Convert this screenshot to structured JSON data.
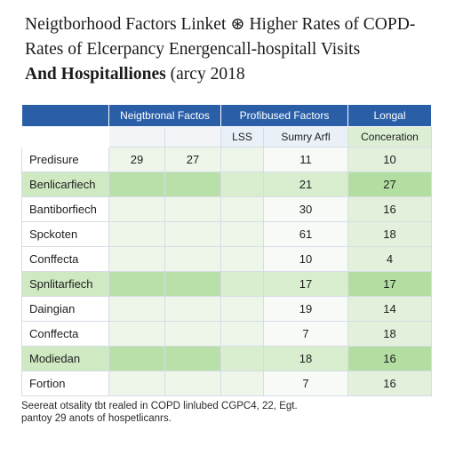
{
  "title": {
    "line1": "Neigtborhood Factors Linket ⊛ Higher Rates of COPD-",
    "line2": "Rates of Elcerpancy Energencall-hospitall Visits",
    "line3": "And Hospitalliones",
    "line3_suffix": "(arcy 2018"
  },
  "chart_data": {
    "type": "table",
    "header_groups": [
      "Neigtbronal Factos",
      "Profibused Factors",
      "Longal"
    ],
    "subheaders": [
      "",
      "",
      "",
      "LSS",
      "Sumry Arfl",
      "Conceration"
    ],
    "rows": [
      {
        "label": "Predisure",
        "values": [
          "29",
          "27",
          "",
          "",
          "11",
          "10"
        ]
      },
      {
        "label": "Benlicarfiech",
        "values": [
          "",
          "",
          "",
          "",
          "21",
          "27"
        ]
      },
      {
        "label": "Bantiborfiech",
        "values": [
          "",
          "",
          "",
          "",
          "30",
          "16"
        ]
      },
      {
        "label": "Spckoten",
        "values": [
          "",
          "",
          "",
          "",
          "61",
          "18"
        ]
      },
      {
        "label": "Conffecta",
        "values": [
          "",
          "",
          "",
          "",
          "10",
          "4"
        ]
      },
      {
        "label": "Spnlitarfiech",
        "values": [
          "",
          "",
          "",
          "",
          "17",
          "17"
        ]
      },
      {
        "label": "Daingian",
        "values": [
          "",
          "",
          "",
          "",
          "19",
          "14"
        ]
      },
      {
        "label": "Conffecta",
        "values": [
          "",
          "",
          "",
          "",
          "7",
          "18"
        ]
      },
      {
        "label": "Modiedan",
        "values": [
          "",
          "",
          "",
          "",
          "18",
          "16"
        ]
      },
      {
        "label": "Fortion",
        "values": [
          "",
          "",
          "",
          "",
          "7",
          "16"
        ]
      }
    ]
  },
  "footnote": {
    "line1": "Seereat otsality tbt realed in COPD linlubed CGPC4, 22, Egt.",
    "line2": "pantoy 29 anots of hospetlicanrs."
  }
}
